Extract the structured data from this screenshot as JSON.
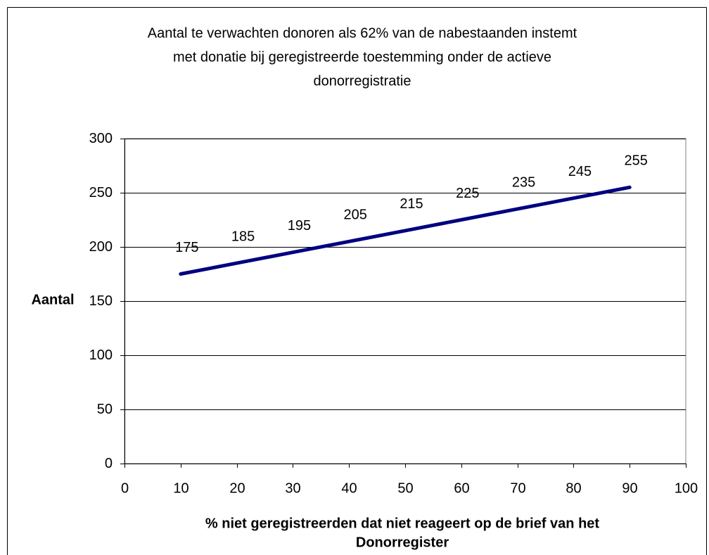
{
  "chart_data": {
    "type": "line",
    "title": [
      "Aantal te verwachten donoren als 62% van de nabestaanden instemt",
      "met donatie bij geregistreerde toestemming onder de actieve",
      "donorregistratie"
    ],
    "x_label": [
      "% niet geregistreerden dat niet reageert op de brief van het",
      "Donorregister"
    ],
    "y_label": "Aantal",
    "x": [
      10,
      20,
      30,
      40,
      50,
      60,
      70,
      80,
      90
    ],
    "series": [
      {
        "name": "Aantal",
        "color": "#000080",
        "values": [
          175,
          185,
          195,
          205,
          215,
          225,
          235,
          245,
          255
        ]
      }
    ],
    "xlim": [
      0,
      100
    ],
    "xticks": [
      0,
      10,
      20,
      30,
      40,
      50,
      60,
      70,
      80,
      90,
      100
    ],
    "ylim": [
      0,
      300
    ],
    "yticks": [
      0,
      50,
      100,
      150,
      200,
      250,
      300
    ],
    "grid": true,
    "data_labels": true
  }
}
